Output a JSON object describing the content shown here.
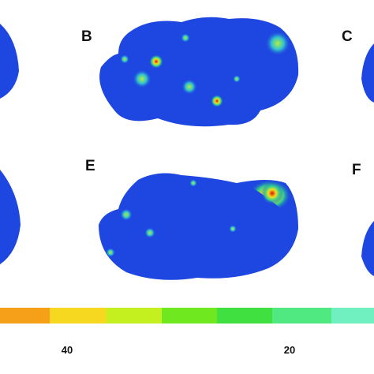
{
  "panels": [
    {
      "label": "B"
    },
    {
      "label": "C"
    },
    {
      "label": "E"
    },
    {
      "label": "F"
    }
  ],
  "colorbar": {
    "labels": [
      "40",
      "20"
    ]
  }
}
